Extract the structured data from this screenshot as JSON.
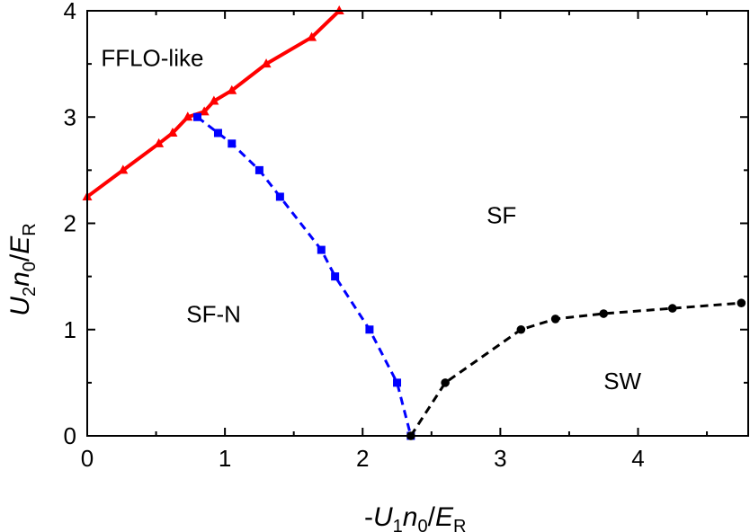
{
  "chart_data": {
    "type": "line",
    "xlabel": "-U₁n₀/E_R",
    "ylabel": "U₂n₀/E_R",
    "xlabel_parts": {
      "prefix": "-",
      "a": "U",
      "a_sub": "1",
      "b": "n",
      "b_sub": "0",
      "slash": "/",
      "c": "E",
      "c_sub": "R"
    },
    "ylabel_parts": {
      "a": "U",
      "a_sub": "2",
      "b": "n",
      "b_sub": "0",
      "slash": "/",
      "c": "E",
      "c_sub": "R"
    },
    "xlim": [
      0,
      4.8
    ],
    "ylim": [
      0,
      4
    ],
    "x_ticks": [
      "0",
      "1",
      "2",
      "3",
      "4"
    ],
    "y_ticks": [
      "0",
      "1",
      "2",
      "3",
      "4"
    ],
    "grid": false,
    "series": [
      {
        "color": "#ff0000",
        "line_style": "solid",
        "marker": "triangle",
        "x": [
          0.0,
          0.26,
          0.52,
          0.62,
          0.73,
          0.85,
          0.92,
          1.05,
          1.3,
          1.63,
          1.83
        ],
        "y": [
          2.25,
          2.5,
          2.75,
          2.85,
          3.0,
          3.05,
          3.15,
          3.25,
          3.5,
          3.75,
          4.0
        ]
      },
      {
        "color": "#0000ff",
        "line_style": "dashed",
        "marker": "square",
        "x": [
          0.8,
          0.95,
          1.05,
          1.25,
          1.4,
          1.7,
          1.8,
          2.05,
          2.25,
          2.35
        ],
        "y": [
          3.0,
          2.85,
          2.75,
          2.5,
          2.25,
          1.75,
          1.5,
          1.0,
          0.5,
          0.0
        ]
      },
      {
        "color": "#000000",
        "line_style": "dashed",
        "marker": "circle",
        "x": [
          2.35,
          2.6,
          3.15,
          3.4,
          3.75,
          4.25,
          4.75
        ],
        "y": [
          0.0,
          0.5,
          1.0,
          1.1,
          1.15,
          1.2,
          1.25
        ]
      }
    ],
    "annotations": [
      {
        "text": "FFLO-like",
        "x": 0.1,
        "y": 3.48
      },
      {
        "text": "SF",
        "x": 2.9,
        "y": 2.0
      },
      {
        "text": "SF-N",
        "x": 0.72,
        "y": 1.07
      },
      {
        "text": "SW",
        "x": 3.75,
        "y": 0.44
      }
    ]
  }
}
